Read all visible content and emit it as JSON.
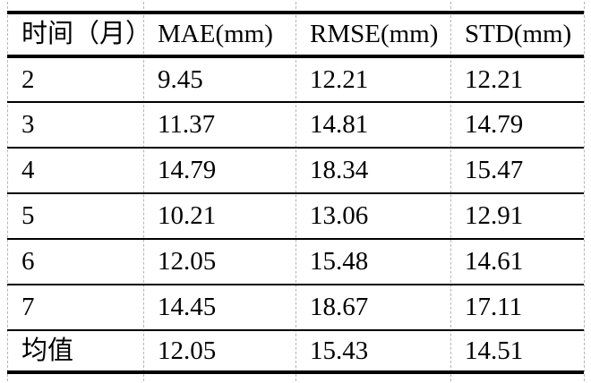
{
  "table": {
    "columns": [
      "时间（月）",
      "MAE(mm)",
      "RMSE(mm)",
      "STD(mm)"
    ],
    "rows": [
      [
        "2",
        "9.45",
        "12.21",
        "12.21"
      ],
      [
        "3",
        "11.37",
        "14.81",
        "14.79"
      ],
      [
        "4",
        "14.79",
        "18.34",
        "15.47"
      ],
      [
        "5",
        "10.21",
        "13.06",
        "12.91"
      ],
      [
        "6",
        "12.05",
        "15.48",
        "14.61"
      ],
      [
        "7",
        "14.45",
        "18.67",
        "17.11"
      ],
      [
        "均值",
        "12.05",
        "15.43",
        "14.51"
      ]
    ]
  },
  "colors": {
    "border": "#000000",
    "gridline": "#b5b5b5",
    "text": "#000000",
    "background": "#ffffff"
  }
}
